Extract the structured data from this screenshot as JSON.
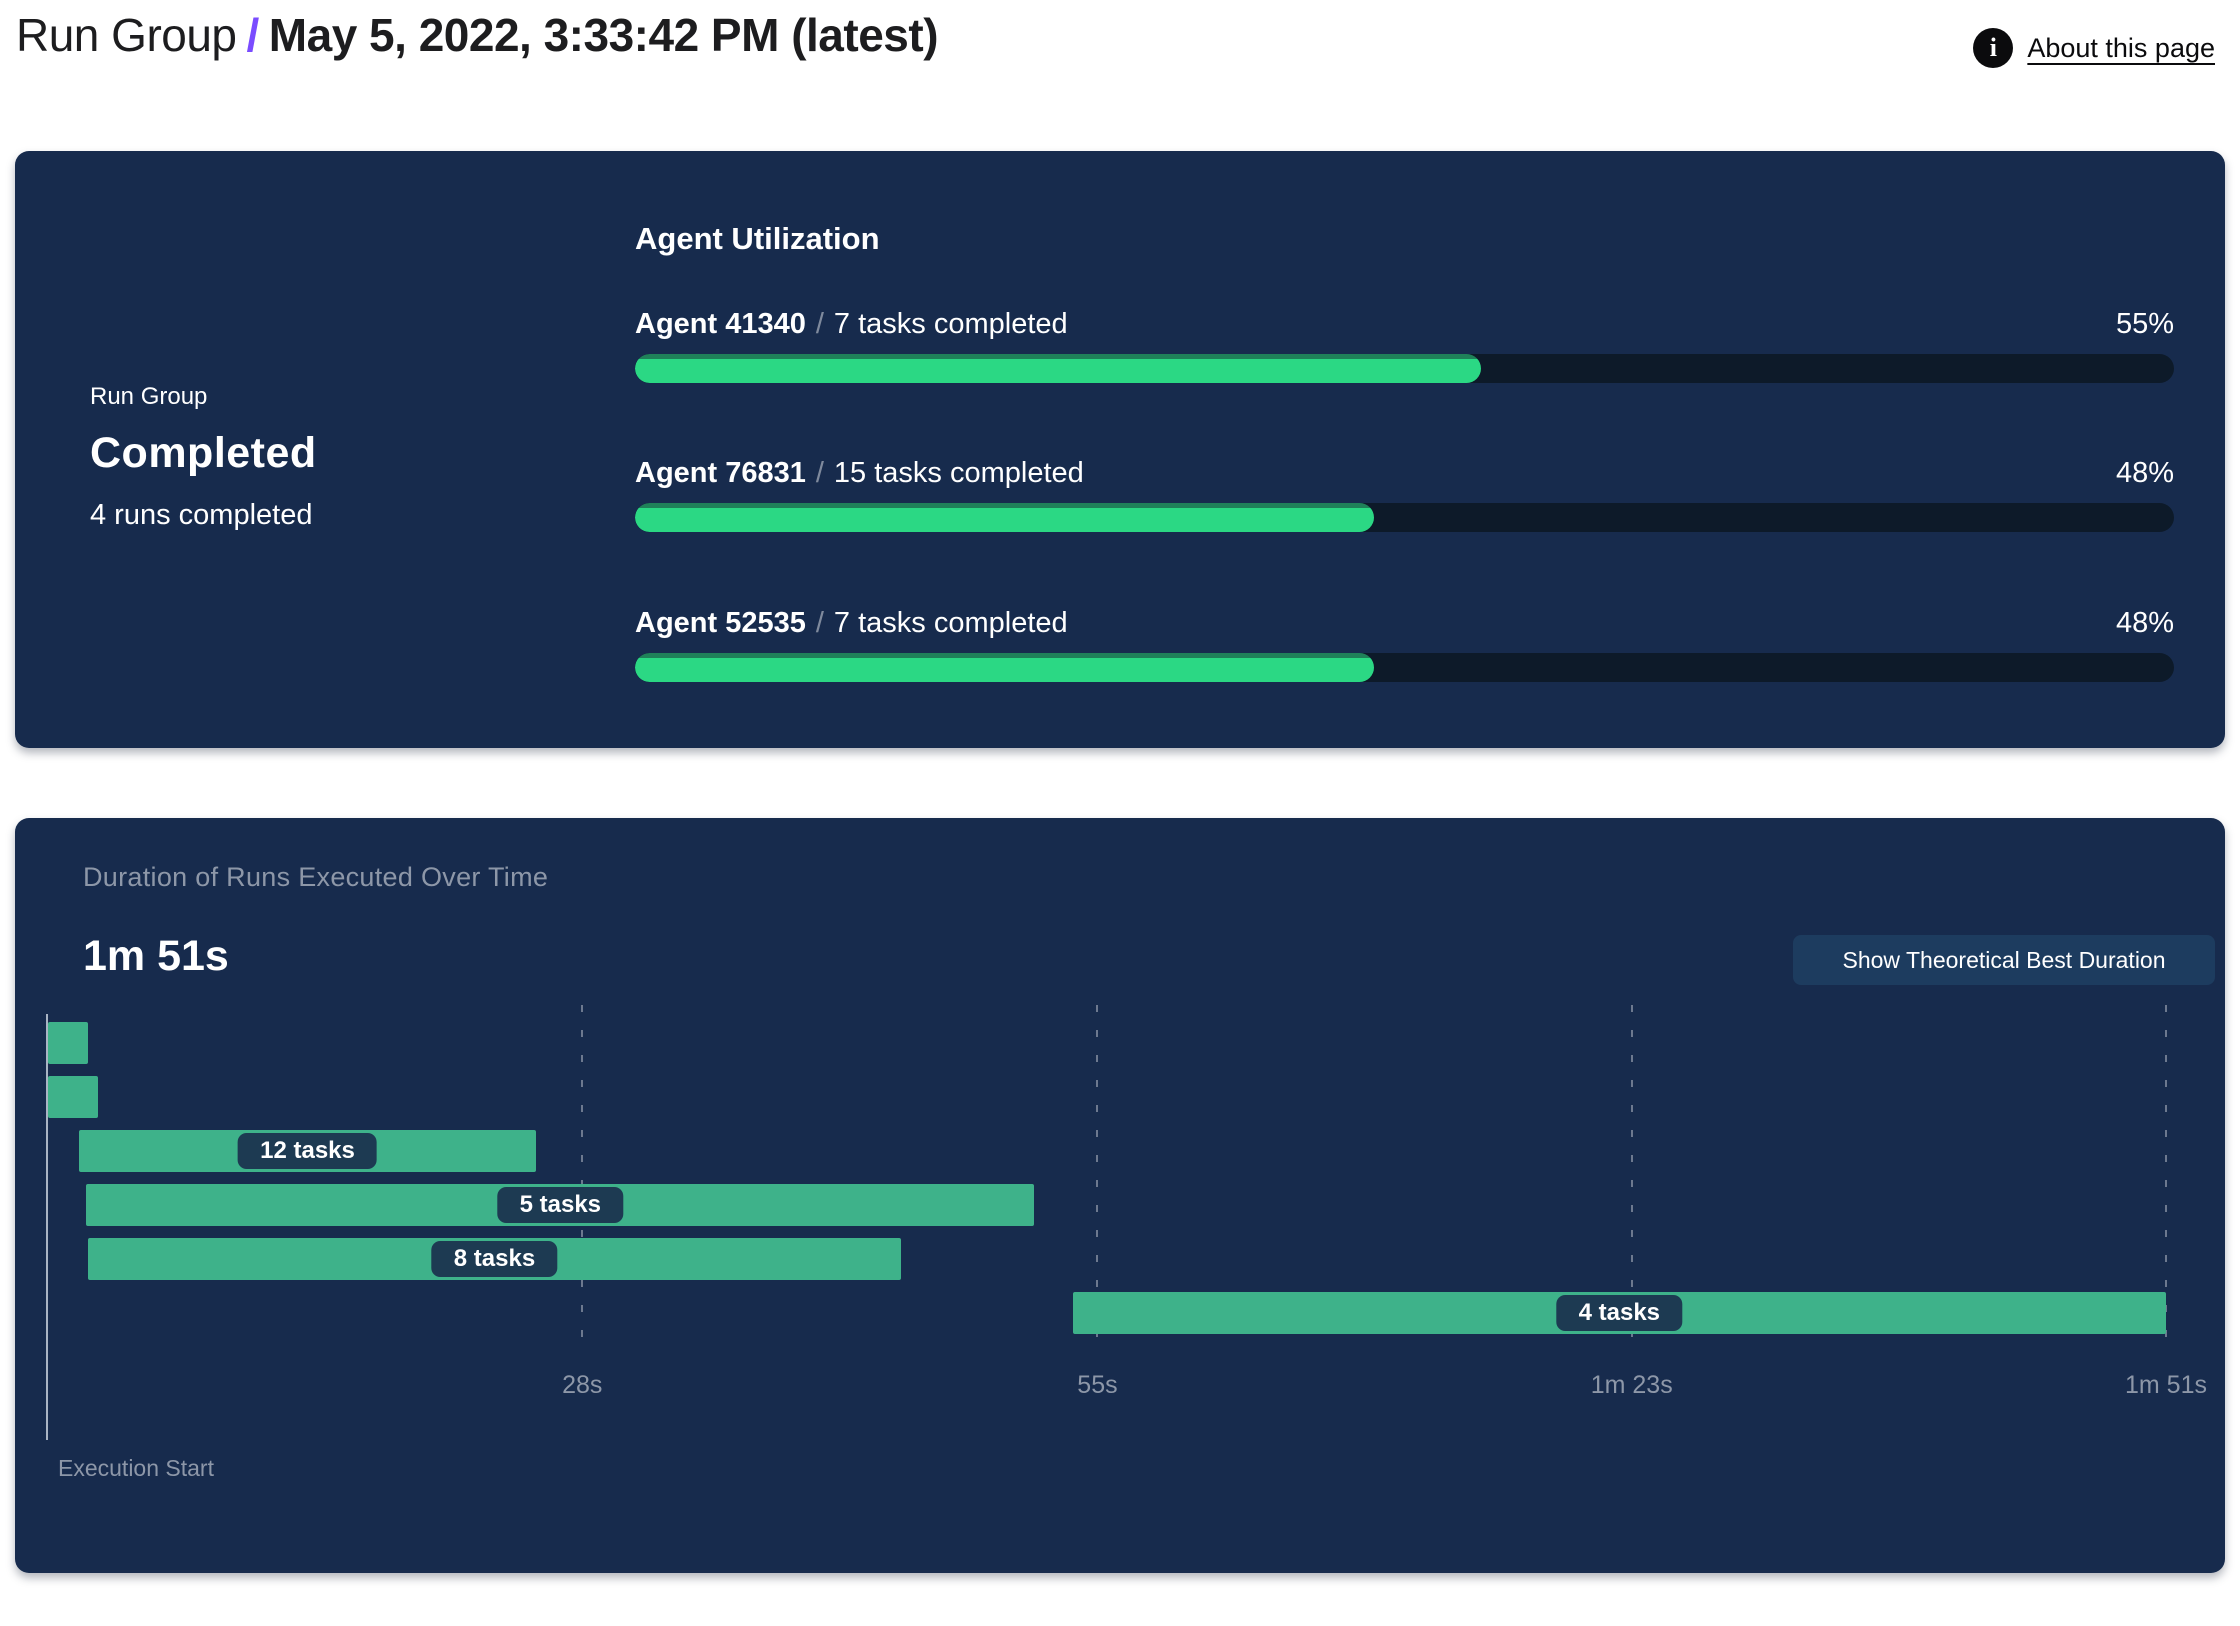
{
  "header": {
    "breadcrumb_root": "Run Group",
    "breadcrumb_separator": "/",
    "breadcrumb_current": "May 5, 2022, 3:33:42 PM (latest)",
    "about_link_label": "About this page",
    "info_icon_glyph": "i"
  },
  "summary_panel": {
    "group_label": "Run Group",
    "status": "Completed",
    "runs_completed": "4 runs completed",
    "utilization_title": "Agent Utilization",
    "separator": "/",
    "agents": [
      {
        "name": "Agent 41340",
        "tasks": "7 tasks completed",
        "percent": 55,
        "percent_label": "55%"
      },
      {
        "name": "Agent 76831",
        "tasks": "15 tasks completed",
        "percent": 48,
        "percent_label": "48%"
      },
      {
        "name": "Agent 52535",
        "tasks": "7 tasks completed",
        "percent": 48,
        "percent_label": "48%"
      }
    ]
  },
  "duration_panel": {
    "title": "Duration of Runs Executed Over Time",
    "total_duration": "1m 51s",
    "button_label": "Show Theoretical Best Duration",
    "execution_start_label": "Execution Start"
  },
  "chart_data": {
    "type": "gantt",
    "title": "Duration of Runs Executed Over Time",
    "total_duration_label": "1m 51s",
    "x_axis": {
      "unit": "seconds",
      "min_s": 0,
      "max_s": 111,
      "origin_label": "Execution Start",
      "ticks": [
        {
          "s": 28,
          "label": "28s"
        },
        {
          "s": 55,
          "label": "55s"
        },
        {
          "s": 83,
          "label": "1m 23s"
        },
        {
          "s": 111,
          "label": "1m 51s"
        }
      ],
      "grid": "dashed-vertical"
    },
    "runs": [
      {
        "row": 1,
        "start_s": 0.0,
        "end_s": 2.1,
        "label": ""
      },
      {
        "row": 2,
        "start_s": 0.0,
        "end_s": 2.6,
        "label": ""
      },
      {
        "row": 3,
        "start_s": 1.6,
        "end_s": 25.6,
        "label": "12 tasks"
      },
      {
        "row": 4,
        "start_s": 2.0,
        "end_s": 51.7,
        "label": "5 tasks"
      },
      {
        "row": 5,
        "start_s": 2.1,
        "end_s": 44.7,
        "label": "8 tasks"
      },
      {
        "row": 6,
        "start_s": 53.7,
        "end_s": 111.0,
        "label": "4 tasks"
      }
    ]
  },
  "colors": {
    "panel_navy": "#172b4d",
    "progress_green": "#2bd884",
    "progress_track": "#0d1a29",
    "gantt_green": "#3eb28a",
    "pill_navy": "#1d3a52",
    "accent_purple": "#7a4cff",
    "muted_text": "#8d97a8",
    "button_navy": "#1d3c5f"
  }
}
